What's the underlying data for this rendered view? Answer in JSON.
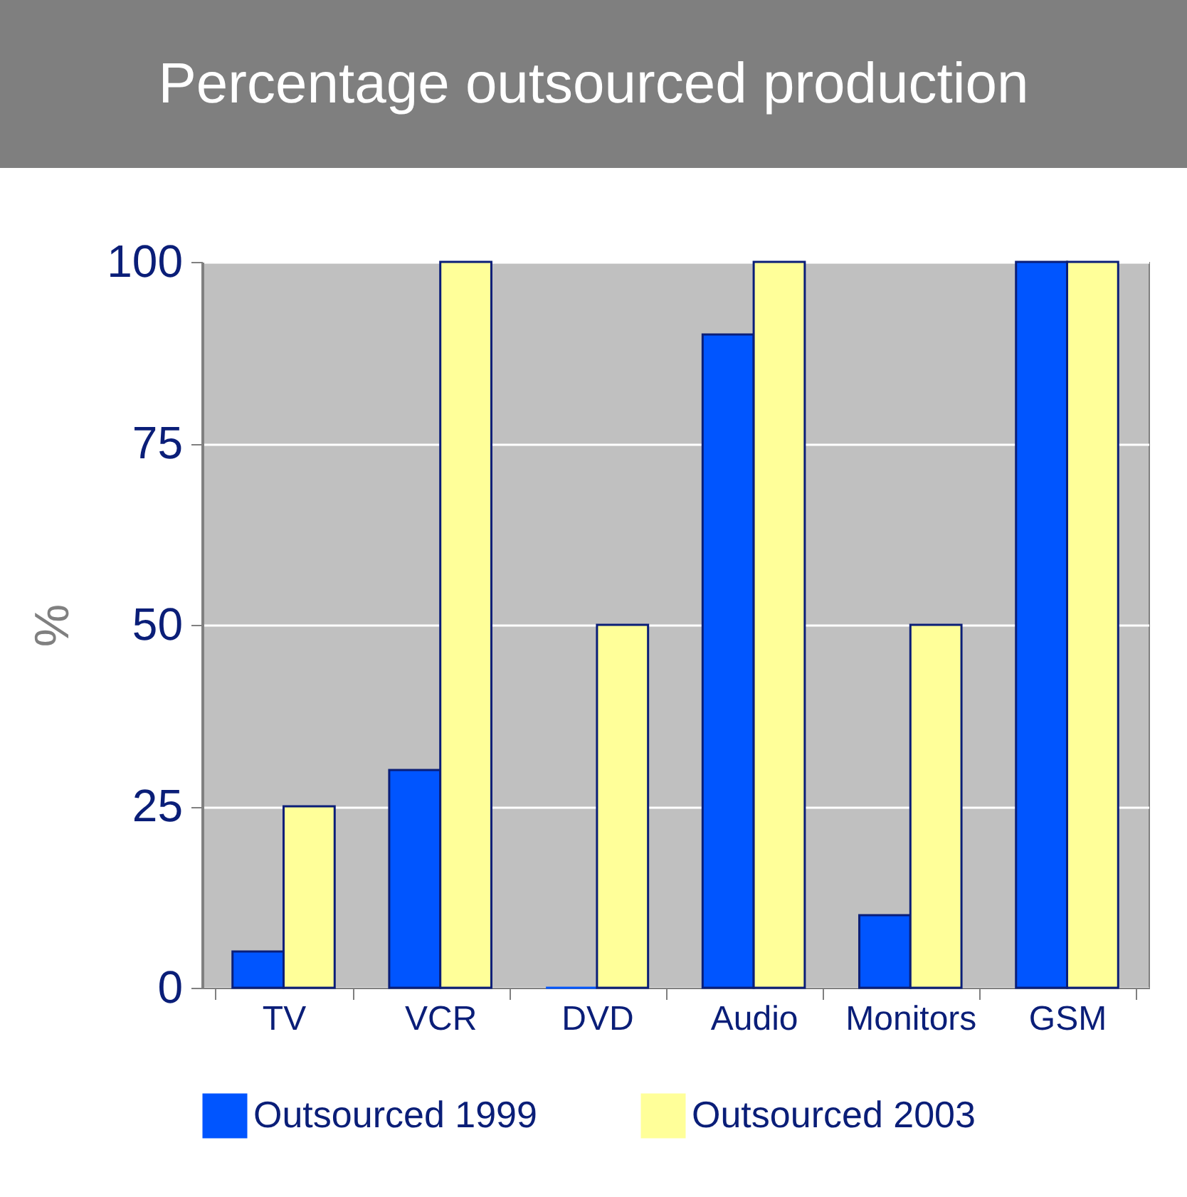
{
  "chart_data": {
    "type": "bar",
    "title": "Percentage outsourced production",
    "ylabel": "%",
    "categories": [
      "TV",
      "VCR",
      "DVD",
      "Audio",
      "Monitors",
      "GSM"
    ],
    "series": [
      {
        "name": "Outsourced 1999",
        "color": "#0055ff",
        "values": [
          5,
          30,
          0,
          90,
          10,
          100
        ]
      },
      {
        "name": "Outsourced 2003",
        "color": "#ffff99",
        "values": [
          25,
          100,
          50,
          100,
          50,
          100
        ]
      }
    ],
    "ylim": [
      0,
      100
    ],
    "yticks": [
      0,
      25,
      50,
      75,
      100
    ],
    "grid": "y",
    "legend": "bottom"
  }
}
